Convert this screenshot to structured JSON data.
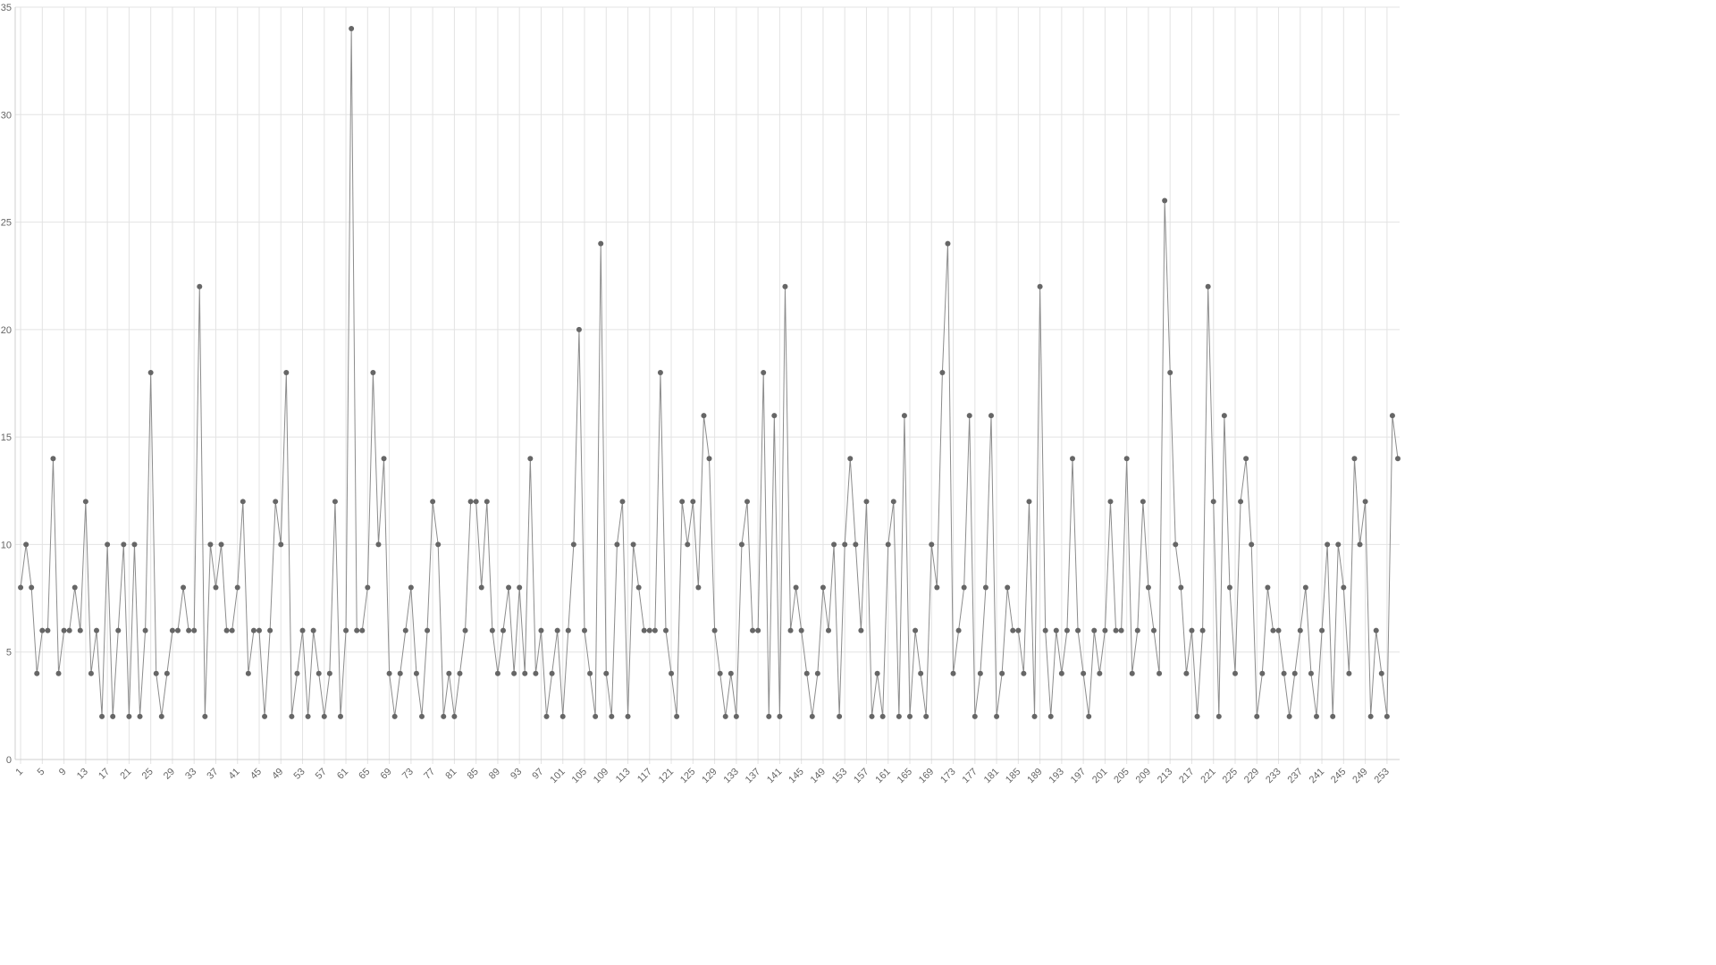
{
  "chart_data": {
    "type": "line",
    "x": [
      1,
      2,
      3,
      4,
      5,
      6,
      7,
      8,
      9,
      10,
      11,
      12,
      13,
      14,
      15,
      16,
      17,
      18,
      19,
      20,
      21,
      22,
      23,
      24,
      25,
      26,
      27,
      28,
      29,
      30,
      31,
      32,
      33,
      34,
      35,
      36,
      37,
      38,
      39,
      40,
      41,
      42,
      43,
      44,
      45,
      46,
      47,
      48,
      49,
      50,
      51,
      52,
      53,
      54,
      55,
      56,
      57,
      58,
      59,
      60,
      61,
      62,
      63,
      64,
      65,
      66,
      67,
      68,
      69,
      70,
      71,
      72,
      73,
      74,
      75,
      76,
      77,
      78,
      79,
      80,
      81,
      82,
      83,
      84,
      85,
      86,
      87,
      88,
      89,
      90,
      91,
      92,
      93,
      94,
      95,
      96,
      97,
      98,
      99,
      100,
      101,
      102,
      103,
      104,
      105,
      106,
      107,
      108,
      109,
      110,
      111,
      112,
      113,
      114,
      115,
      116,
      117,
      118,
      119,
      120,
      121,
      122,
      123,
      124,
      125,
      126,
      127,
      128,
      129,
      130,
      131,
      132,
      133,
      134,
      135,
      136,
      137,
      138,
      139,
      140,
      141,
      142,
      143,
      144,
      145,
      146,
      147,
      148,
      149,
      150,
      151,
      152,
      153,
      154,
      155,
      156,
      157,
      158,
      159,
      160,
      161,
      162,
      163,
      164,
      165,
      166,
      167,
      168,
      169,
      170,
      171,
      172,
      173,
      174,
      175,
      176,
      177,
      178,
      179,
      180,
      181,
      182,
      183,
      184,
      185,
      186,
      187,
      188,
      189,
      190,
      191,
      192,
      193,
      194,
      195,
      196,
      197,
      198,
      199,
      200,
      201,
      202,
      203,
      204,
      205,
      206,
      207,
      208,
      209,
      210,
      211,
      212,
      213,
      214,
      215,
      216,
      217,
      218,
      219,
      220,
      221,
      222,
      223,
      224,
      225,
      226,
      227,
      228,
      229,
      230,
      231,
      232,
      233,
      234,
      235,
      236,
      237,
      238,
      239,
      240,
      241,
      242,
      243,
      244,
      245,
      246,
      247,
      248,
      249,
      250,
      251,
      252,
      253,
      254,
      255
    ],
    "series": [
      {
        "color": "#666666",
        "line_color": "#8c8c8c",
        "values": [
          8,
          10,
          8,
          4,
          6,
          6,
          14,
          4,
          6,
          6,
          8,
          6,
          12,
          4,
          6,
          2,
          10,
          2,
          6,
          10,
          2,
          10,
          2,
          6,
          18,
          4,
          2,
          4,
          6,
          6,
          8,
          6,
          6,
          22,
          2,
          10,
          8,
          10,
          6,
          6,
          8,
          12,
          4,
          6,
          6,
          2,
          6,
          12,
          10,
          18,
          2,
          4,
          6,
          2,
          6,
          4,
          2,
          4,
          12,
          2,
          6,
          34,
          6,
          6,
          8,
          18,
          10,
          14,
          4,
          2,
          4,
          6,
          8,
          4,
          2,
          6,
          12,
          10,
          2,
          4,
          2,
          4,
          6,
          12,
          12,
          8,
          12,
          6,
          4,
          6,
          8,
          4,
          8,
          4,
          14,
          4,
          6,
          2,
          4,
          6,
          2,
          6,
          10,
          20,
          6,
          4,
          2,
          24,
          4,
          2,
          10,
          12,
          2,
          10,
          8,
          6,
          6,
          6,
          18,
          6,
          4,
          2,
          12,
          10,
          12,
          8,
          16,
          14,
          6,
          4,
          2,
          4,
          2,
          10,
          12,
          6,
          6,
          18,
          2,
          16,
          2,
          22,
          6,
          8,
          6,
          4,
          2,
          4,
          8,
          6,
          10,
          2,
          10,
          14,
          10,
          6,
          12,
          2,
          4,
          2,
          10,
          12,
          2,
          16,
          2,
          6,
          4,
          2,
          10,
          8,
          18,
          24,
          4,
          6,
          8,
          16,
          2,
          4,
          8,
          16,
          2,
          4,
          8,
          6,
          6,
          4,
          12,
          2,
          22,
          6,
          2,
          6,
          4,
          6,
          14,
          6,
          4,
          2,
          6,
          4,
          6,
          12,
          6,
          6,
          14,
          4,
          6,
          12,
          8,
          6,
          4,
          26,
          18,
          10,
          8,
          4,
          6,
          2,
          6,
          22,
          12,
          2,
          16,
          8,
          4,
          12,
          14,
          10,
          2,
          4,
          8,
          6,
          6,
          4,
          2,
          4,
          6,
          8,
          4,
          2,
          6,
          10,
          2,
          10,
          8,
          4,
          14,
          10,
          12,
          2,
          6,
          4,
          2,
          16,
          14
        ]
      }
    ],
    "xlim": [
      0,
      255
    ],
    "xticks": [
      1,
      5,
      9,
      13,
      17,
      21,
      25,
      29,
      33,
      37,
      41,
      45,
      49,
      53,
      57,
      61,
      65,
      69,
      73,
      77,
      81,
      85,
      89,
      93,
      97,
      101,
      105,
      109,
      113,
      117,
      121,
      125,
      129,
      133,
      137,
      141,
      145,
      149,
      153,
      157,
      161,
      165,
      169,
      173,
      177,
      181,
      185,
      189,
      193,
      197,
      201,
      205,
      209,
      213,
      217,
      221,
      225,
      229,
      233,
      237,
      241,
      245,
      249,
      253
    ],
    "ylim": [
      0,
      35
    ],
    "yticks": [
      0,
      5,
      10,
      15,
      20,
      25,
      30,
      35
    ],
    "grid": true
  }
}
